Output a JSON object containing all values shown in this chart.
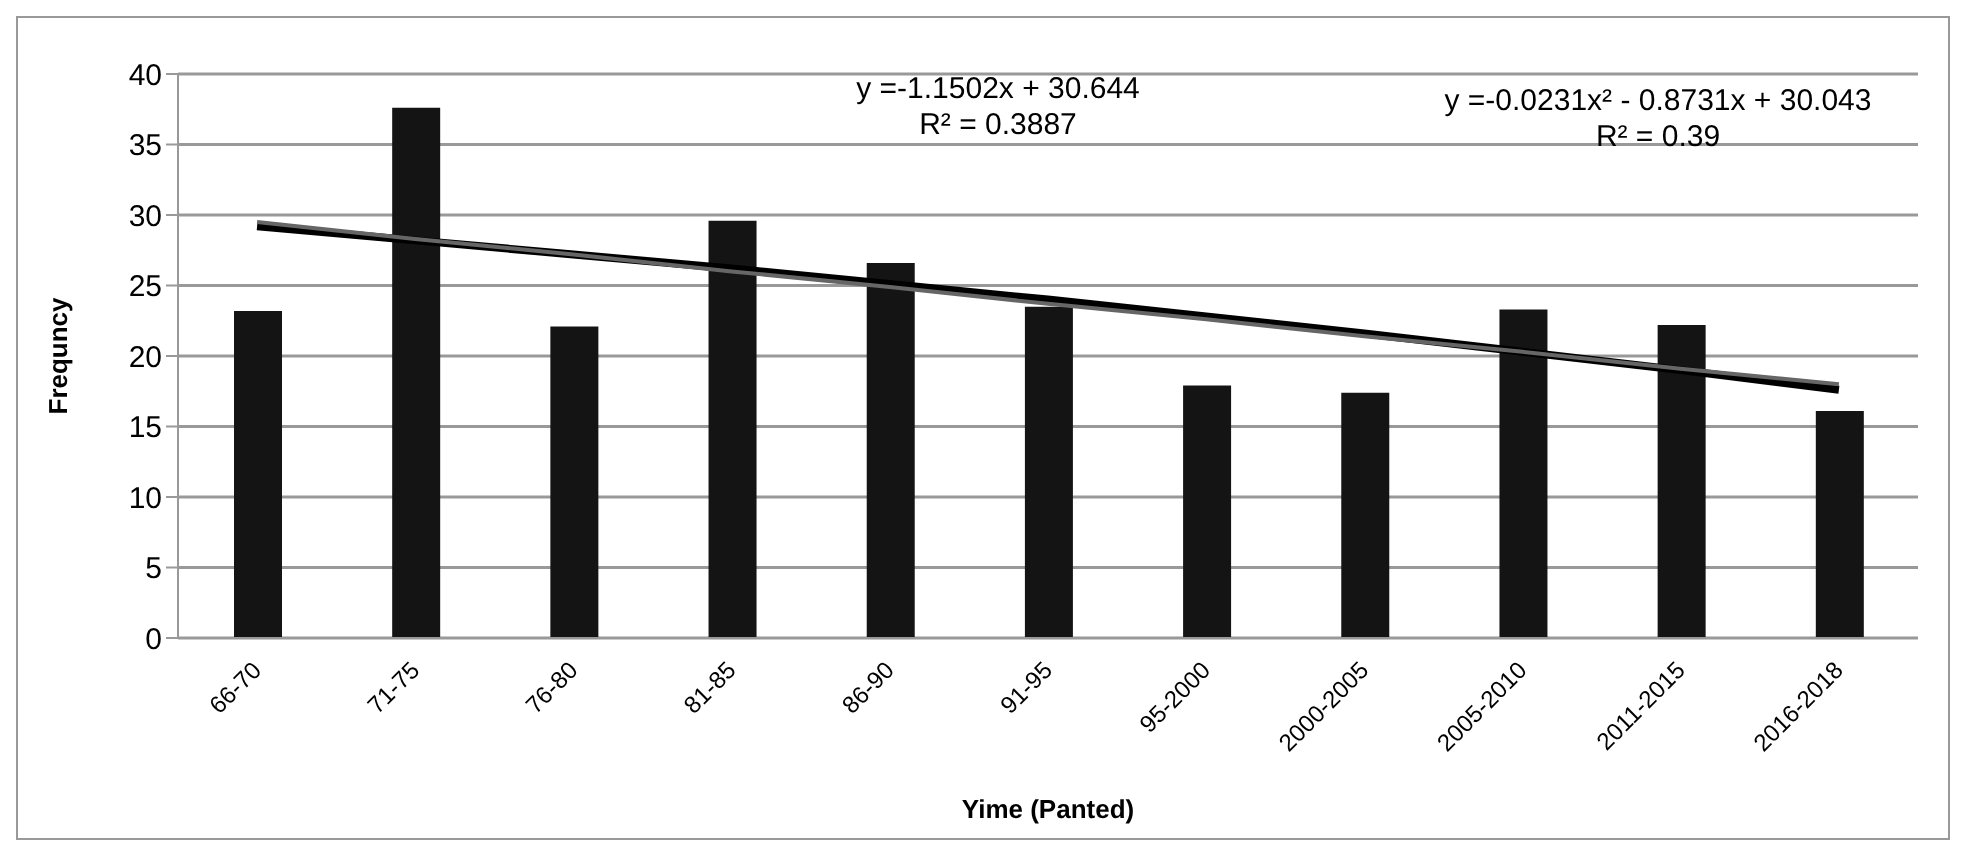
{
  "chart_data": {
    "type": "bar",
    "xlabel": "Yime (Panted)",
    "ylabel": "Frequncy",
    "categories": [
      "66-70",
      "71-75",
      "76-80",
      "81-85",
      "86-90",
      "91-95",
      "95-2000",
      "2000-2005",
      "2005-2010",
      "2011-2015",
      "2016-2018"
    ],
    "series": [
      {
        "color": "#141414",
        "values": [
          23.2,
          37.6,
          22.1,
          29.6,
          26.6,
          23.5,
          17.9,
          17.4,
          23.3,
          22.2,
          16.1
        ]
      },
      {
        "type": "line",
        "color": "#000000",
        "values": [
          29.2,
          28.2,
          27.2,
          26.2,
          25.1,
          24.0,
          22.8,
          21.6,
          20.3,
          19.0,
          17.6
        ]
      },
      {
        "type": "line",
        "color": "#666666",
        "values": [
          29.5,
          28.3,
          27.2,
          26.0,
          24.9,
          23.7,
          22.6,
          21.4,
          20.3,
          19.1,
          18.0
        ]
      }
    ],
    "ylim": [
      0,
      40
    ],
    "yticks": [
      0,
      5,
      10,
      15,
      20,
      25,
      30,
      35,
      40
    ],
    "grid": "y",
    "legend": false,
    "marker": "none",
    "line_style": "solid",
    "annotations": [
      "y =-1.1502x + 30.644",
      "R² = 0.3887",
      "y =-0.0231x² - 0.8731x + 30.043",
      "R² = 0.39"
    ]
  }
}
